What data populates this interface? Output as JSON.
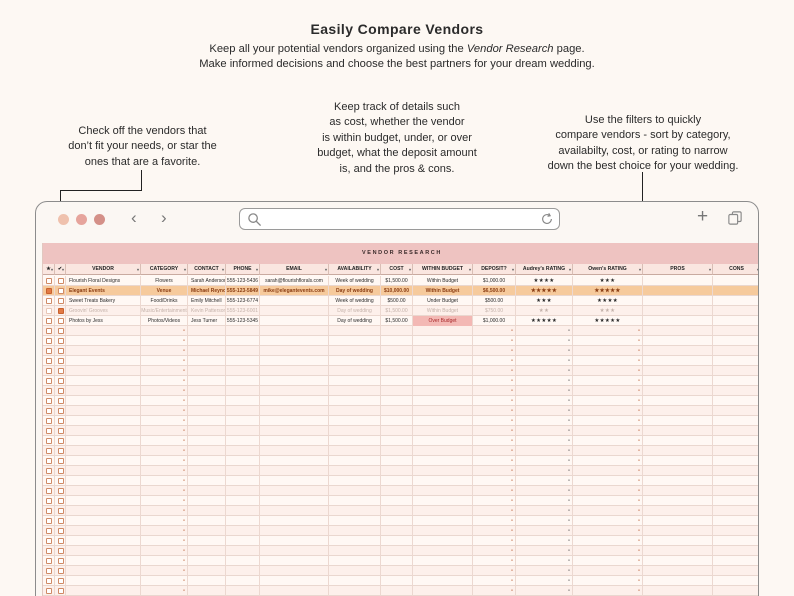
{
  "header": {
    "title": "Easily Compare Vendors",
    "sub_pre": "Keep all your potential vendors organized using the ",
    "sub_em": "Vendor Research",
    "sub_post": " page.",
    "sub_line2": "Make informed decisions and choose the best partners for your dream wedding."
  },
  "callouts": {
    "left": [
      "Check off the vendors that",
      "don’t fit your needs, or star the",
      "ones that are a favorite."
    ],
    "middle": [
      "Keep track of details such",
      "as cost, whether the vendor",
      "is within budget, under, or over",
      "budget, what the deposit amount",
      "is, and the pros & cons."
    ],
    "right": [
      "Use the filters to quickly",
      "compare vendors - sort by category,",
      "availabilty, cost, or rating to narrow",
      "down the best choice for your wedding."
    ]
  },
  "browser": {
    "dot_colors": [
      "#efc1ad",
      "#e6a49c",
      "#d49088"
    ],
    "icons": [
      "chevron-left-icon",
      "chevron-right-icon",
      "search-icon",
      "reload-icon",
      "plus-icon",
      "tabs-icon"
    ]
  },
  "sheet": {
    "title": "VENDOR RESEARCH",
    "columns": [
      "★",
      "✔",
      "VENDOR",
      "CATEGORY",
      "CONTACT",
      "PHONE",
      "EMAIL",
      "AVAILABILITY",
      "COST",
      "WITHIN BUDGET",
      "DEPOSIT?",
      "Audrey's RATING",
      "Owen's RATING",
      "PROS",
      "CONS"
    ],
    "rows": [
      {
        "star": false,
        "check": false,
        "style": "normal",
        "vendor": "Flourish Floral Designs",
        "category": "Flowers",
        "contact": "Sarah Anderson",
        "phone": "555-123-5436",
        "email": "sarah@flourishflorals.com",
        "availability": "Week of wedding",
        "cost": "$1,500.00",
        "budget": "Within Budget",
        "deposit": "$1,000.00",
        "audrey": "★★★★",
        "owen": "★★★"
      },
      {
        "star": true,
        "check": false,
        "style": "orange",
        "vendor": "Elegant Events",
        "category": "Venue",
        "contact": "Michael Reynolds",
        "phone": "555-123-5849",
        "email": "mike@elegantevents.com",
        "availability": "Day of wedding",
        "cost": "$10,000.00",
        "budget": "Within Budget",
        "deposit": "$6,500.00",
        "audrey": "★★★★★",
        "owen": "★★★★★"
      },
      {
        "star": false,
        "check": false,
        "style": "normal",
        "vendor": "Sweet Treats Bakery",
        "category": "Food/Drinks",
        "contact": "Emily Mitchell",
        "phone": "555-123-6774",
        "email": "",
        "availability": "Week of wedding",
        "cost": "$500.00",
        "budget": "Under Budget",
        "deposit": "$500.00",
        "audrey": "★★★",
        "owen": "★★★★"
      },
      {
        "star": false,
        "check": true,
        "style": "faded",
        "vendor": "Groovin' Grooves",
        "category": "Music/Entertainment",
        "contact": "Kevin Patterson",
        "phone": "555-123-6001",
        "email": "",
        "availability": "Day of wedding",
        "cost": "$1,500.00",
        "budget": "Within Budget",
        "deposit": "$750.00",
        "audrey": "★★",
        "owen": "★★★"
      },
      {
        "star": false,
        "check": false,
        "style": "normal",
        "vendor": "Photos by Jess",
        "category": "Photos/Videos",
        "contact": "Jess Turner",
        "phone": "555-123-5345",
        "email": "",
        "availability": "Day of wedding",
        "cost": "$1,500.00",
        "budget": "Over Budget",
        "deposit": "$1,000.00",
        "audrey": "★★★★★",
        "owen": "★★★★★"
      }
    ],
    "empty_rows": 29,
    "dash": "-"
  }
}
